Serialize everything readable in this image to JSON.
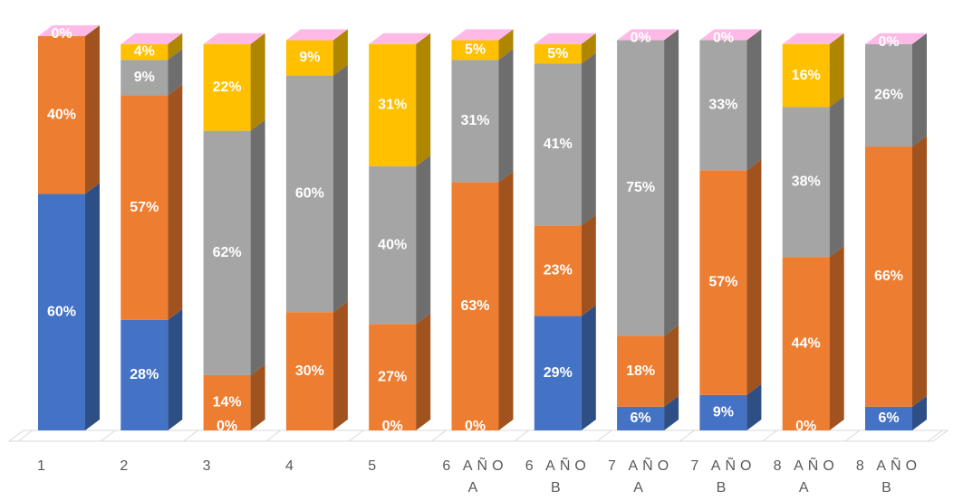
{
  "chart_data": {
    "type": "bar",
    "stacked": true,
    "percent": true,
    "style": "3d-stacked-column",
    "grid": false,
    "legend": "none",
    "categories": [
      [
        "1"
      ],
      [
        "2"
      ],
      [
        "3"
      ],
      [
        "4"
      ],
      [
        "5"
      ],
      [
        "6 AÑO",
        "A"
      ],
      [
        "6 AÑO",
        "B"
      ],
      [
        "7 AÑO",
        "A"
      ],
      [
        "7 AÑO",
        "B"
      ],
      [
        "8 AÑO",
        "A"
      ],
      [
        "8 AÑO",
        "B"
      ]
    ],
    "series": [
      {
        "color": "#4472C4",
        "side": "#2E4F86",
        "values": [
          60,
          28,
          0,
          null,
          0,
          0,
          29,
          6,
          9,
          0,
          6
        ]
      },
      {
        "color": "#ED7D31",
        "side": "#A0531F",
        "values": [
          40,
          57,
          14,
          30,
          27,
          63,
          23,
          18,
          57,
          44,
          66
        ]
      },
      {
        "color": "#A5A5A5",
        "side": "#6E6E6E",
        "values": [
          null,
          9,
          62,
          60,
          40,
          31,
          41,
          75,
          33,
          38,
          26
        ]
      },
      {
        "color": "#FFC000",
        "side": "#B08500",
        "values": [
          0,
          4,
          22,
          9,
          31,
          5,
          5,
          0,
          0,
          16,
          0
        ]
      }
    ],
    "ylim": [
      0,
      100
    ]
  }
}
